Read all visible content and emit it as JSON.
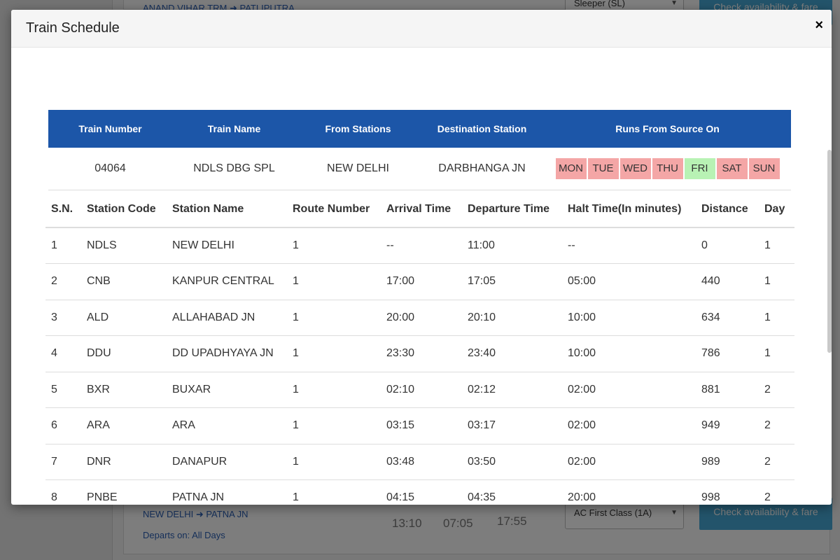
{
  "background": {
    "rows": [
      {
        "route": "ANAND VIHAR TRM ➜ PATLIPUTRA",
        "class": "Sleeper (SL)",
        "button": "Check availability & fare"
      },
      {
        "route": "NEW DELHI ➜ PATNA JN",
        "departs": "Departs on: All Days",
        "times": [
          "13:10",
          "07:05",
          "17:55"
        ],
        "class": "AC First Class (1A)",
        "button": "Check availability & fare"
      }
    ]
  },
  "modal": {
    "title": "Train Schedule",
    "close": "×"
  },
  "summary": {
    "headers": [
      "Train Number",
      "Train Name",
      "From Stations",
      "Destination Station",
      "Runs From Source On"
    ],
    "train_number": "04064",
    "train_name": "NDLS DBG SPL",
    "from_station": "NEW DELHI",
    "destination": "DARBHANGA JN",
    "days": [
      {
        "label": "MON",
        "runs": false
      },
      {
        "label": "TUE",
        "runs": false
      },
      {
        "label": "WED",
        "runs": false
      },
      {
        "label": "THU",
        "runs": false
      },
      {
        "label": "FRI",
        "runs": true
      },
      {
        "label": "SAT",
        "runs": false
      },
      {
        "label": "SUN",
        "runs": false
      }
    ],
    "colors": {
      "header_bg": "#1c56a8",
      "day_off": "#f4a6a6",
      "day_on": "#b8f2b4"
    }
  },
  "schedule": {
    "headers": [
      "S.N.",
      "Station Code",
      "Station Name",
      "Route Number",
      "Arrival Time",
      "Departure Time",
      "Halt Time(In minutes)",
      "Distance",
      "Day"
    ],
    "rows": [
      [
        "1",
        "NDLS",
        "NEW DELHI",
        "1",
        "--",
        "11:00",
        "--",
        "0",
        "1"
      ],
      [
        "2",
        "CNB",
        "KANPUR CENTRAL",
        "1",
        "17:00",
        "17:05",
        "05:00",
        "440",
        "1"
      ],
      [
        "3",
        "ALD",
        "ALLAHABAD JN",
        "1",
        "20:00",
        "20:10",
        "10:00",
        "634",
        "1"
      ],
      [
        "4",
        "DDU",
        "DD UPADHYAYA JN",
        "1",
        "23:30",
        "23:40",
        "10:00",
        "786",
        "1"
      ],
      [
        "5",
        "BXR",
        "BUXAR",
        "1",
        "02:10",
        "02:12",
        "02:00",
        "881",
        "2"
      ],
      [
        "6",
        "ARA",
        "ARA",
        "1",
        "03:15",
        "03:17",
        "02:00",
        "949",
        "2"
      ],
      [
        "7",
        "DNR",
        "DANAPUR",
        "1",
        "03:48",
        "03:50",
        "02:00",
        "989",
        "2"
      ],
      [
        "8",
        "PNBE",
        "PATNA JN",
        "1",
        "04:15",
        "04:35",
        "20:00",
        "998",
        "2"
      ]
    ]
  }
}
